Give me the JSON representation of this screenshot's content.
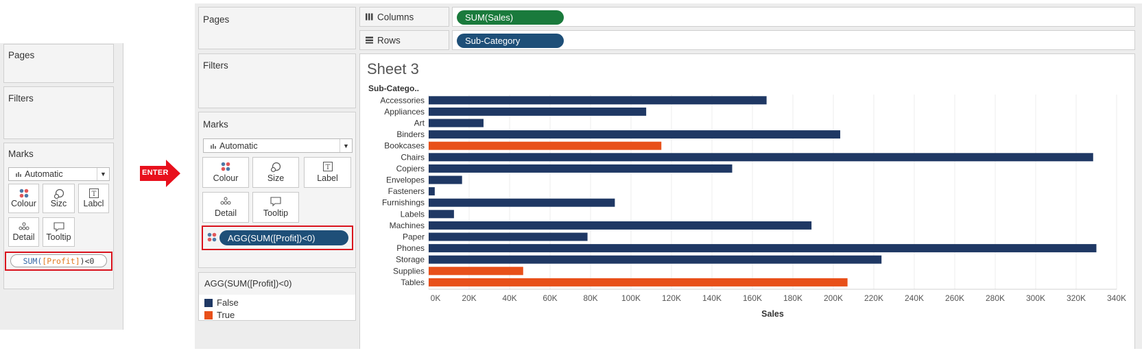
{
  "colors": {
    "navy": "#1f3864",
    "orange": "#e8501a",
    "green": "#1a7a3c",
    "pill_blue": "#1e4f78",
    "red_box": "#d9111c"
  },
  "left": {
    "pages_title": "Pages",
    "filters_title": "Filters",
    "marks_title": "Marks",
    "mark_type": "Automatic",
    "buttons": {
      "colour": "Colour",
      "size": "Sizc",
      "label": "Labcl",
      "detail": "Detail",
      "tooltip": "Tooltip"
    },
    "formula": {
      "fn": "SUM(",
      "field": "[Profit]",
      "rest": ")<0"
    }
  },
  "arrow_label": "ENTER",
  "right": {
    "pages_title": "Pages",
    "filters_title": "Filters",
    "marks_title": "Marks",
    "mark_type": "Automatic",
    "buttons": {
      "colour": "Colour",
      "size": "Size",
      "label": "Label",
      "detail": "Detail",
      "tooltip": "Tooltip"
    },
    "colour_pill": "AGG(SUM([Profit])<0)",
    "legend": {
      "title": "AGG(SUM([Profit])<0)",
      "items": [
        {
          "label": "False",
          "color": "#1f3864"
        },
        {
          "label": "True",
          "color": "#e8501a"
        }
      ]
    },
    "columns_label": "Columns",
    "columns_pill": "SUM(Sales)",
    "rows_label": "Rows",
    "rows_pill": "Sub-Category"
  },
  "chart_data": {
    "type": "bar",
    "orientation": "horizontal",
    "title": "Sheet 3",
    "row_header": "Sub-Catego..",
    "xlabel": "Sales",
    "xlim": [
      0,
      340000
    ],
    "xticks": [
      "0K",
      "20K",
      "40K",
      "60K",
      "80K",
      "100K",
      "120K",
      "140K",
      "160K",
      "180K",
      "200K",
      "220K",
      "240K",
      "260K",
      "280K",
      "300K",
      "320K",
      "340K"
    ],
    "grid": true,
    "categories": [
      "Accessories",
      "Appliances",
      "Art",
      "Binders",
      "Bookcases",
      "Chairs",
      "Copiers",
      "Envelopes",
      "Fasteners",
      "Furnishings",
      "Labels",
      "Machines",
      "Paper",
      "Phones",
      "Storage",
      "Supplies",
      "Tables"
    ],
    "values": [
      167000,
      107500,
      27100,
      203400,
      115000,
      328400,
      150000,
      16500,
      3000,
      92000,
      12500,
      189200,
      78500,
      330000,
      223800,
      46700,
      207000
    ],
    "negative_profit": [
      false,
      false,
      false,
      false,
      true,
      false,
      false,
      false,
      false,
      false,
      false,
      false,
      false,
      false,
      false,
      true,
      true
    ]
  }
}
